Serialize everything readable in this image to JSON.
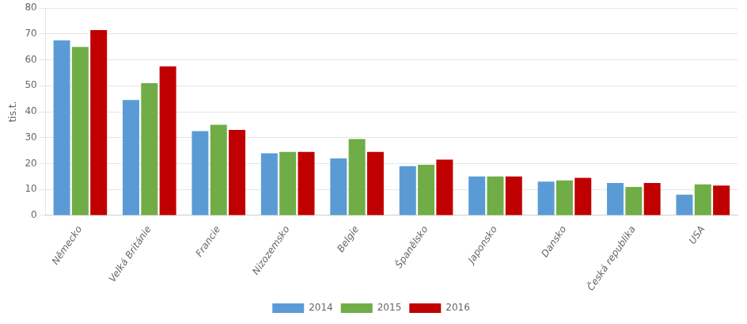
{
  "chart_data": {
    "type": "bar",
    "categories": [
      "Německo",
      "Velká Británie",
      "Francie",
      "Nizozemsko",
      "Belgie",
      "Španělsko",
      "Japonsko",
      "Dansko",
      "Česká republika",
      "USA"
    ],
    "series": [
      {
        "name": "2014",
        "color": "#5B9BD5",
        "values": [
          67.5,
          44.5,
          32.5,
          24,
          22,
          19,
          15,
          13,
          12.5,
          8
        ]
      },
      {
        "name": "2015",
        "color": "#70AD47",
        "values": [
          65,
          51,
          35,
          24.5,
          29.5,
          19.5,
          15,
          13.5,
          11,
          12
        ]
      },
      {
        "name": "2016",
        "color": "#C00000",
        "values": [
          71.5,
          57.5,
          33,
          24.5,
          24.5,
          21.5,
          15,
          14.5,
          12.5,
          11.5
        ]
      }
    ],
    "ylabel": "tis.t.",
    "ylim": [
      0,
      80
    ],
    "yticks": [
      0,
      10,
      20,
      30,
      40,
      50,
      60,
      70,
      80
    ],
    "grid": true,
    "legend": "bottom"
  }
}
